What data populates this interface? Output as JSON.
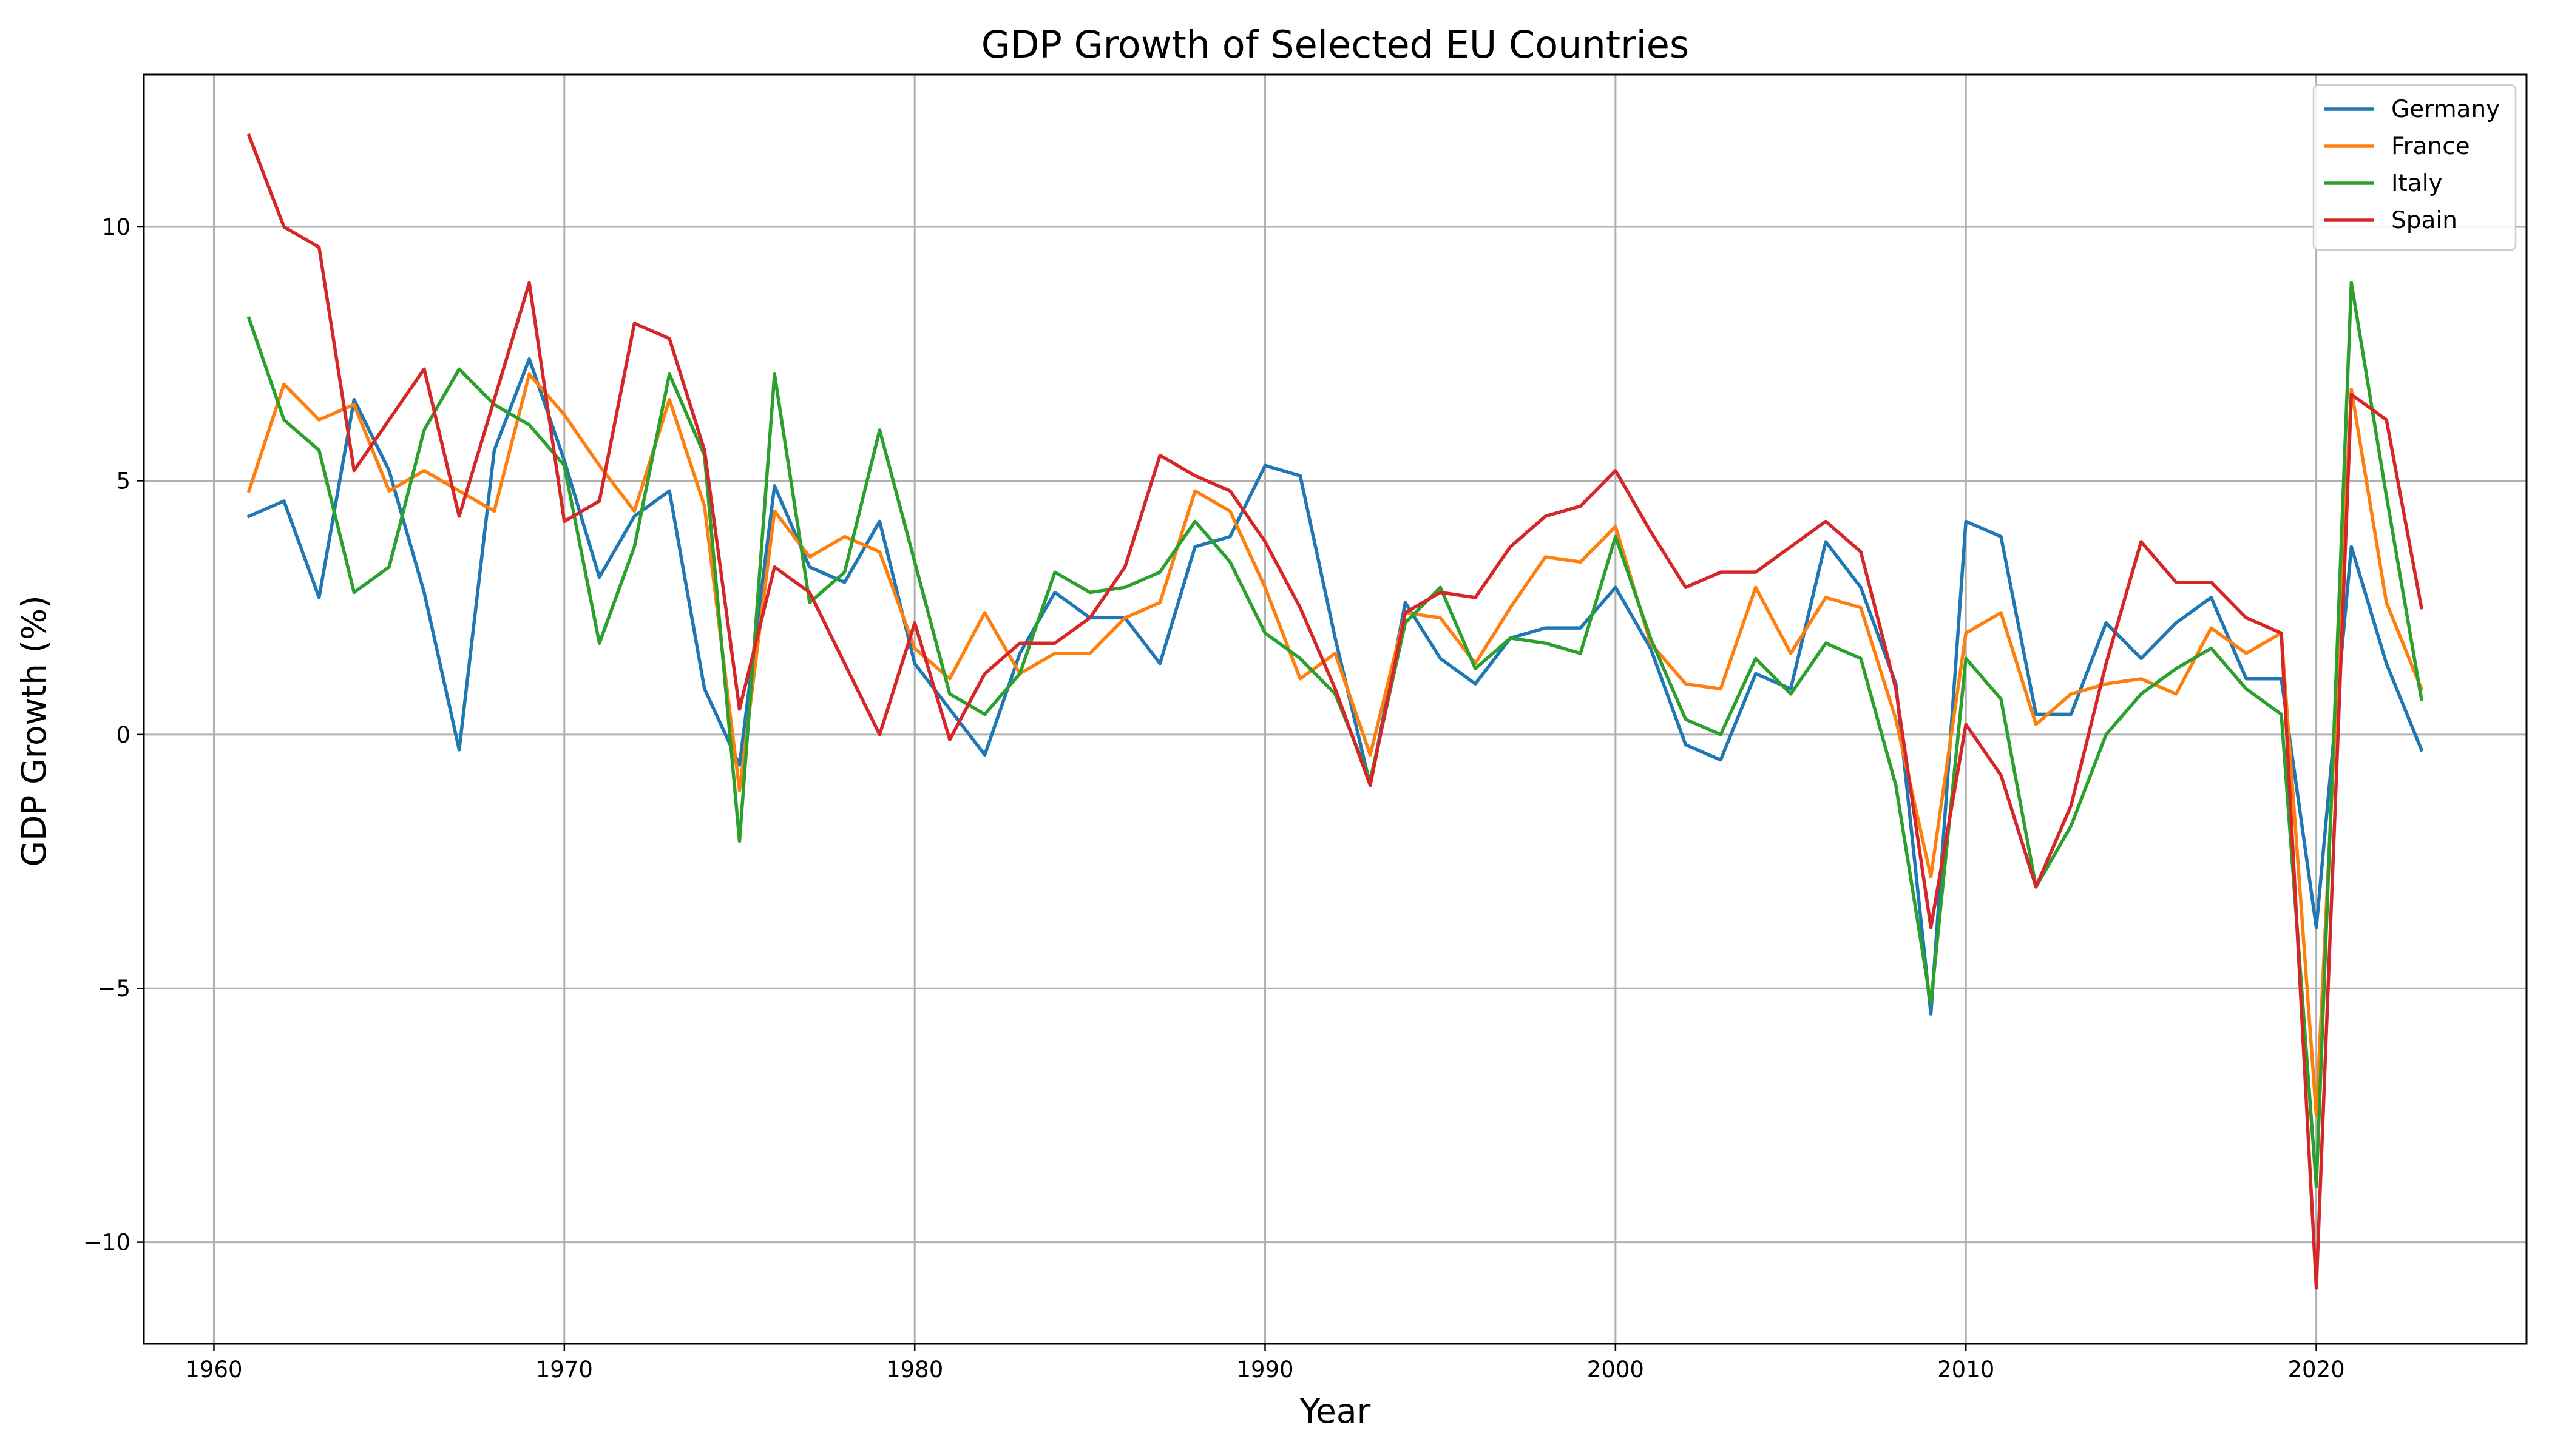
{
  "chart_data": {
    "type": "line",
    "title": "GDP Growth of Selected EU Countries",
    "xlabel": "Year",
    "ylabel": "GDP Growth (%)",
    "xlim": [
      1958,
      2026
    ],
    "ylim": [
      -12.0,
      13.0
    ],
    "xticks": [
      1960,
      1970,
      1980,
      1990,
      2000,
      2010,
      2020
    ],
    "yticks": [
      -10,
      -5,
      0,
      5,
      10
    ],
    "ytick_labels": [
      "−10",
      "−5",
      "0",
      "5",
      "10"
    ],
    "grid": true,
    "legend_position": "top-right",
    "x": [
      1961,
      1962,
      1963,
      1964,
      1965,
      1966,
      1967,
      1968,
      1969,
      1970,
      1971,
      1972,
      1973,
      1974,
      1975,
      1976,
      1977,
      1978,
      1979,
      1980,
      1981,
      1982,
      1983,
      1984,
      1985,
      1986,
      1987,
      1988,
      1989,
      1990,
      1991,
      1992,
      1993,
      1994,
      1995,
      1996,
      1997,
      1998,
      1999,
      2000,
      2001,
      2002,
      2003,
      2004,
      2005,
      2006,
      2007,
      2008,
      2009,
      2010,
      2011,
      2012,
      2013,
      2014,
      2015,
      2016,
      2017,
      2018,
      2019,
      2020,
      2021,
      2022,
      2023
    ],
    "series": [
      {
        "name": "Germany",
        "color": "#1f77b4",
        "values": [
          4.3,
          4.6,
          2.7,
          6.6,
          5.2,
          2.8,
          -0.3,
          5.6,
          7.4,
          5.4,
          3.1,
          4.3,
          4.8,
          0.9,
          -0.6,
          4.9,
          3.3,
          3.0,
          4.2,
          1.4,
          0.5,
          -0.4,
          1.6,
          2.8,
          2.3,
          2.3,
          1.4,
          3.7,
          3.9,
          5.3,
          5.1,
          1.9,
          -1.0,
          2.6,
          1.5,
          1.0,
          1.9,
          2.1,
          2.1,
          2.9,
          1.7,
          -0.2,
          -0.5,
          1.2,
          0.9,
          3.8,
          2.9,
          1.0,
          -5.5,
          4.2,
          3.9,
          0.4,
          0.4,
          2.2,
          1.5,
          2.2,
          2.7,
          1.1,
          1.1,
          -3.8,
          3.7,
          1.4,
          -0.3
        ]
      },
      {
        "name": "France",
        "color": "#ff7f0e",
        "values": [
          4.8,
          6.9,
          6.2,
          6.5,
          4.8,
          5.2,
          4.8,
          4.4,
          7.1,
          6.3,
          5.3,
          4.4,
          6.6,
          4.5,
          -1.1,
          4.4,
          3.5,
          3.9,
          3.6,
          1.7,
          1.1,
          2.4,
          1.2,
          1.6,
          1.6,
          2.3,
          2.6,
          4.8,
          4.4,
          2.9,
          1.1,
          1.6,
          -0.4,
          2.4,
          2.3,
          1.4,
          2.5,
          3.5,
          3.4,
          4.1,
          1.8,
          1.0,
          0.9,
          2.9,
          1.6,
          2.7,
          2.5,
          0.3,
          -2.8,
          2.0,
          2.4,
          0.2,
          0.8,
          1.0,
          1.1,
          0.8,
          2.1,
          1.6,
          2.0,
          -7.5,
          6.8,
          2.6,
          0.9
        ]
      },
      {
        "name": "Italy",
        "color": "#2ca02c",
        "values": [
          8.2,
          6.2,
          5.6,
          2.8,
          3.3,
          6.0,
          7.2,
          6.5,
          6.1,
          5.3,
          1.8,
          3.7,
          7.1,
          5.5,
          -2.1,
          7.1,
          2.6,
          3.2,
          6.0,
          3.4,
          0.8,
          0.4,
          1.2,
          3.2,
          2.8,
          2.9,
          3.2,
          4.2,
          3.4,
          2.0,
          1.5,
          0.8,
          -0.9,
          2.2,
          2.9,
          1.3,
          1.9,
          1.8,
          1.6,
          3.9,
          1.9,
          0.3,
          0.0,
          1.5,
          0.8,
          1.8,
          1.5,
          -1.0,
          -5.3,
          1.5,
          0.7,
          -3.0,
          -1.8,
          0.0,
          0.8,
          1.3,
          1.7,
          0.9,
          0.4,
          -8.9,
          8.9,
          4.7,
          0.7
        ]
      },
      {
        "name": "Spain",
        "color": "#d62728",
        "values": [
          11.8,
          10.0,
          9.6,
          5.2,
          6.2,
          7.2,
          4.3,
          6.6,
          8.9,
          4.2,
          4.6,
          8.1,
          7.8,
          5.6,
          0.5,
          3.3,
          2.8,
          1.4,
          0.0,
          2.2,
          -0.1,
          1.2,
          1.8,
          1.8,
          2.3,
          3.3,
          5.5,
          5.1,
          4.8,
          3.8,
          2.5,
          0.9,
          -1.0,
          2.4,
          2.8,
          2.7,
          3.7,
          4.3,
          4.5,
          5.2,
          4.0,
          2.9,
          3.2,
          3.2,
          3.7,
          4.2,
          3.6,
          0.9,
          -3.8,
          0.2,
          -0.8,
          -3.0,
          -1.4,
          1.4,
          3.8,
          3.0,
          3.0,
          2.3,
          2.0,
          -10.9,
          6.7,
          6.2,
          2.5
        ]
      }
    ]
  }
}
